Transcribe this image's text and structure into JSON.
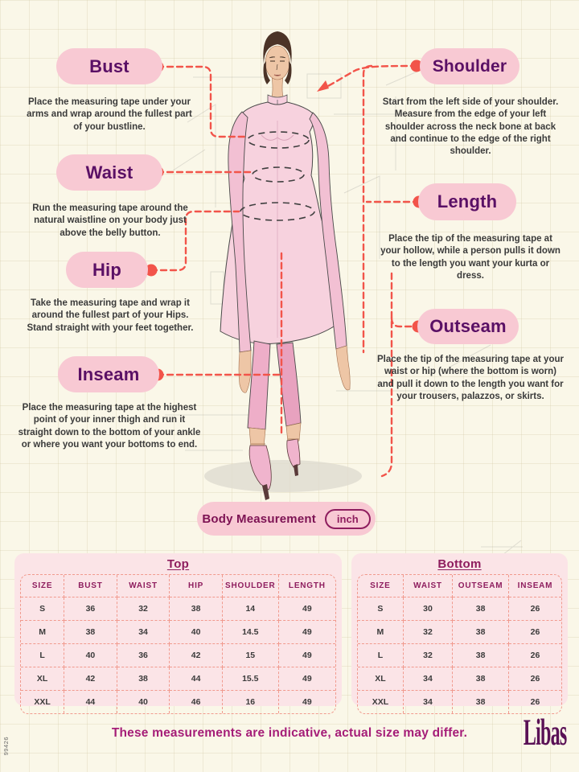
{
  "colors": {
    "background_cream": "#faf7e8",
    "pill_pink": "#f8c9d3",
    "label_purple": "#5a1065",
    "heading_magenta": "#8e1d5e",
    "footer_magenta": "#a51d78",
    "connector_red": "#f2544a",
    "table_pink": "#fbe4e7",
    "table_dash": "#f19a8e",
    "kurta_pink": "#f7d2de"
  },
  "labels": {
    "left": [
      {
        "label": "Bust",
        "desc": "Place the measuring tape under your arms and wrap around the fullest part of your bustline."
      },
      {
        "label": "Waist",
        "desc": "Run the measuring tape around the natural waistline on your body just above the belly button."
      },
      {
        "label": "Hip",
        "desc": "Take the measuring tape and wrap it around the fullest part of your Hips. Stand straight with your feet together."
      },
      {
        "label": "Inseam",
        "desc": "Place the measuring tape at the highest point of your inner thigh and run it straight down to the bottom of your ankle or where you want your bottoms to end."
      }
    ],
    "right": [
      {
        "label": "Shoulder",
        "desc": "Start from the left side of your shoulder. Measure from the edge of your left shoulder across the neck bone at back and continue to the edge of the right shoulder."
      },
      {
        "label": "Length",
        "desc": "Place the tip of the measuring tape at your hollow, while a person pulls it down to the length you want your kurta or dress."
      },
      {
        "label": "Outseam",
        "desc": "Place the tip of the measuring tape at your waist or hip (where the bottom is worn) and pull it down to the length you want for your trousers, palazzos, or skirts."
      }
    ]
  },
  "unit_selector": {
    "label": "Body Measurement",
    "unit": "inch"
  },
  "tables": {
    "top": {
      "title": "Top",
      "headers": [
        "SIZE",
        "BUST",
        "WAIST",
        "HIP",
        "SHOULDER",
        "LENGTH"
      ],
      "rows": [
        [
          "S",
          "36",
          "32",
          "38",
          "14",
          "49"
        ],
        [
          "M",
          "38",
          "34",
          "40",
          "14.5",
          "49"
        ],
        [
          "L",
          "40",
          "36",
          "42",
          "15",
          "49"
        ],
        [
          "XL",
          "42",
          "38",
          "44",
          "15.5",
          "49"
        ],
        [
          "XXL",
          "44",
          "40",
          "46",
          "16",
          "49"
        ]
      ]
    },
    "bottom": {
      "title": "Bottom",
      "headers": [
        "SIZE",
        "WAIST",
        "OUTSEAM",
        "INSEAM"
      ],
      "rows": [
        [
          "S",
          "30",
          "38",
          "26"
        ],
        [
          "M",
          "32",
          "38",
          "26"
        ],
        [
          "L",
          "32",
          "38",
          "26"
        ],
        [
          "XL",
          "34",
          "38",
          "26"
        ],
        [
          "XXL",
          "34",
          "38",
          "26"
        ]
      ]
    }
  },
  "footer": {
    "note": "These measurements are indicative, actual size may differ.",
    "brand": "Libas",
    "code": "99426"
  }
}
